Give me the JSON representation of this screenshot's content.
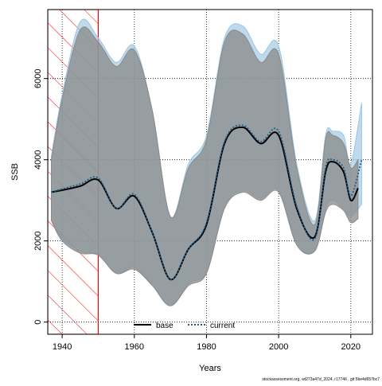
{
  "chart_data": {
    "type": "line",
    "title": "",
    "xlabel": "Years",
    "ylabel": "SSB",
    "xlim": [
      1936,
      2026
    ],
    "ylim": [
      -300,
      7700
    ],
    "x_ticks": [
      1940,
      1960,
      1980,
      2000,
      2020
    ],
    "y_ticks": [
      0,
      2000,
      4000,
      6000
    ],
    "grid": true,
    "legend_position": "bottom-center",
    "hatched_period": [
      1936,
      1950
    ],
    "series": [
      {
        "name": "base",
        "style": "solid",
        "color": "#000000",
        "band_color": "#8a8a8a",
        "x": [
          1937,
          1940,
          1945,
          1950,
          1955,
          1960,
          1965,
          1970,
          1975,
          1980,
          1985,
          1990,
          1995,
          2000,
          2005,
          2010,
          2013,
          2015,
          2018,
          2020,
          2022
        ],
        "y": [
          3200,
          3250,
          3350,
          3500,
          2800,
          3100,
          2200,
          1050,
          1800,
          2400,
          4400,
          4800,
          4400,
          4600,
          2800,
          2100,
          3700,
          3950,
          3700,
          3000,
          3300
        ],
        "lower": [
          2500,
          2000,
          1700,
          1650,
          1200,
          1300,
          900,
          400,
          900,
          1200,
          2800,
          3200,
          3000,
          3200,
          1900,
          1750,
          2700,
          2900,
          2750,
          2450,
          2550
        ],
        "upper": [
          4000,
          5500,
          7200,
          6900,
          6300,
          6700,
          5200,
          2600,
          3800,
          4500,
          6900,
          7100,
          6400,
          6600,
          3800,
          2400,
          4500,
          4600,
          4400,
          3800,
          4000
        ]
      },
      {
        "name": "current",
        "style": "dotted",
        "color": "#1f5f8b",
        "band_color": "#9cc6e2",
        "x": [
          1937,
          1940,
          1945,
          1950,
          1955,
          1960,
          1965,
          1970,
          1975,
          1980,
          1985,
          1990,
          1995,
          2000,
          2005,
          2010,
          2013,
          2015,
          2018,
          2020,
          2023
        ],
        "y": [
          3200,
          3280,
          3400,
          3550,
          2800,
          3150,
          2200,
          1050,
          1800,
          2450,
          4450,
          4850,
          4450,
          4700,
          2850,
          2050,
          3800,
          4000,
          3800,
          3100,
          4000
        ],
        "lower": [
          2500,
          2050,
          1750,
          1650,
          1200,
          1350,
          900,
          400,
          950,
          1250,
          2850,
          3250,
          3050,
          3250,
          1950,
          1750,
          2800,
          3000,
          2800,
          2600,
          2900
        ],
        "upper": [
          4100,
          5600,
          7400,
          7000,
          6400,
          6800,
          5200,
          2600,
          3900,
          4600,
          7000,
          7300,
          6600,
          6800,
          3900,
          2500,
          4600,
          4700,
          4600,
          3900,
          5400
        ]
      }
    ]
  },
  "watermark": "stockassessment.org, wt273a47d_2024, r17746 , git 5be4d657bc7"
}
